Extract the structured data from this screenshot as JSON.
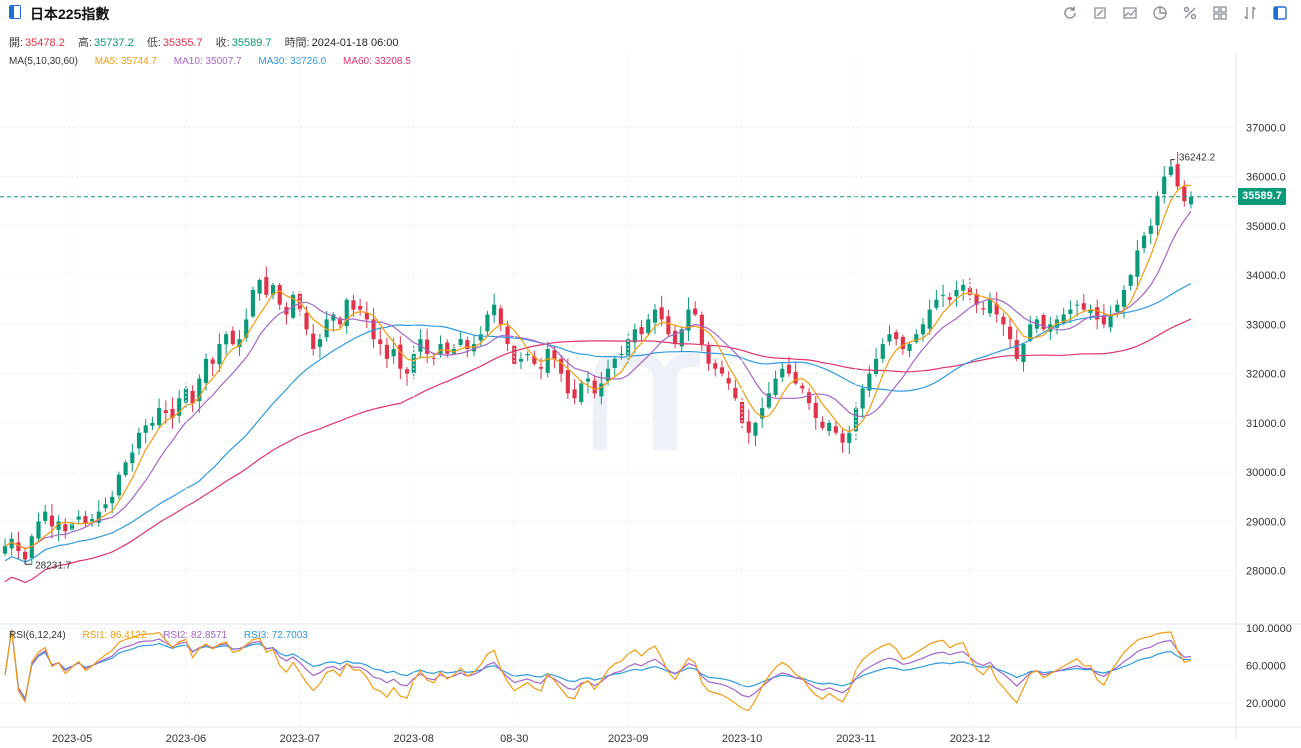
{
  "header": {
    "title": "日本225指數"
  },
  "toolbar": {
    "tools": [
      "refresh-icon",
      "draw-icon",
      "indicator-icon",
      "pie-icon",
      "percent-icon",
      "grid-icon",
      "compare-icon",
      "layout-icon"
    ]
  },
  "ohlc": {
    "open_label": "開:",
    "open": "35478.2",
    "high_label": "高:",
    "high": "35737.2",
    "low_label": "低:",
    "low": "35355.7",
    "close_label": "收:",
    "close": "35589.7",
    "time_label": "時間:",
    "time": "2024-01-18 06:00"
  },
  "ma_legend": {
    "label": "MA(5,10,30,60)",
    "ma5": "MA5: 35744.7",
    "ma10": "MA10: 35007.7",
    "ma30": "MA30: 33726.0",
    "ma60": "MA60: 33208.5"
  },
  "rsi_legend": {
    "label": "RSI(6,12,24)",
    "rsi1": "RSI1: 86.4122",
    "rsi2": "RSI2: 82.8571",
    "rsi3": "RSI3: 72.7003"
  },
  "last_price": "35589.7",
  "colors": {
    "up": "#0a9a7a",
    "down": "#e0334a",
    "ma5": "#f39c12",
    "ma10": "#a566c9",
    "ma30": "#2e9ae0",
    "ma60": "#e0336b",
    "rsi1": "#f39c12",
    "rsi2": "#a566c9",
    "rsi3": "#2e9ae0"
  },
  "chart_data": [
    {
      "type": "candlestick",
      "x_ticks": [
        "2023-05",
        "2023-06",
        "2023-07",
        "2023-08",
        "08-30",
        "2023-09",
        "2023-10",
        "2023-11",
        "2023-12"
      ],
      "y_ticks": [
        "37000.0",
        "36000.0",
        "35000.0",
        "34000.0",
        "33000.0",
        "32000.0",
        "31000.0",
        "30000.0",
        "29000.0",
        "28000.0"
      ],
      "ylim": [
        27000,
        38000
      ],
      "max_label": "36242.2",
      "min_label": "28231.7",
      "last_price": 35589.7,
      "close": [
        28500,
        28650,
        28400,
        28230,
        28700,
        29000,
        29200,
        28900,
        29000,
        28800,
        28950,
        29100,
        28950,
        29050,
        29200,
        29350,
        29500,
        29950,
        30200,
        30400,
        30800,
        30950,
        31000,
        31300,
        31200,
        31100,
        31500,
        31700,
        31400,
        31900,
        32300,
        32200,
        32600,
        32800,
        32600,
        32700,
        33100,
        33700,
        33900,
        33600,
        33800,
        33400,
        33200,
        33600,
        33300,
        32900,
        32500,
        32700,
        33100,
        33200,
        33000,
        33500,
        33300,
        33300,
        33100,
        32700,
        32600,
        32300,
        32500,
        32100,
        32000,
        32400,
        32700,
        32400,
        32300,
        32600,
        32400,
        32500,
        32700,
        32500,
        32600,
        32800,
        33200,
        33400,
        33000,
        32600,
        32200,
        32300,
        32400,
        32200,
        32100,
        32500,
        32300,
        32000,
        31600,
        31500,
        31800,
        31900,
        31600,
        31800,
        32100,
        32300,
        32400,
        32700,
        32900,
        32800,
        33100,
        33300,
        33100,
        32800,
        32600,
        32900,
        33300,
        33200,
        32600,
        32200,
        32100,
        32000,
        31800,
        31500,
        31000,
        30800,
        31000,
        31300,
        31600,
        31900,
        32100,
        32000,
        31800,
        31700,
        31400,
        31100,
        30900,
        31000,
        30800,
        30600,
        30800,
        31300,
        31700,
        32000,
        32300,
        32600,
        32800,
        32700,
        32500,
        32600,
        32800,
        33000,
        33300,
        33500,
        33600,
        33500,
        33700,
        33800,
        33600,
        33400,
        33300,
        33500,
        33200,
        33000,
        32700,
        32300,
        32600,
        33000,
        33100,
        32900,
        33000,
        33100,
        33200,
        33300,
        33400,
        33300,
        33300,
        33100,
        33000,
        33200,
        33400,
        33700,
        34000,
        34500,
        34800,
        35000,
        35600,
        36000,
        36200,
        35800,
        35500,
        35589.7
      ]
    },
    {
      "type": "line",
      "title": "RSI(6,12,24)",
      "y_ticks": [
        "100.0000",
        "60.0000",
        "20.0000"
      ],
      "ylim": [
        0,
        100
      ],
      "series": [
        {
          "name": "RSI1",
          "last": 86.4122
        },
        {
          "name": "RSI2",
          "last": 82.8571
        },
        {
          "name": "RSI3",
          "last": 72.7003
        }
      ]
    }
  ]
}
